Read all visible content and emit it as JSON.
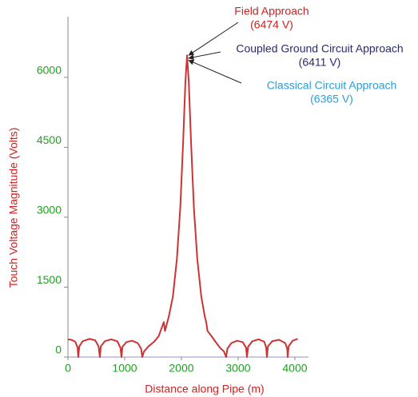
{
  "chart_data": {
    "type": "line",
    "xlabel": "Distance along Pipe (m)",
    "ylabel": "Touch Voltage Magnitude (Volts)",
    "xlim": [
      0,
      4240
    ],
    "ylim": [
      0,
      7300
    ],
    "xticks": [
      0,
      1000,
      2000,
      3000,
      4000
    ],
    "yticks": [
      0,
      1500,
      3000,
      4500,
      6000
    ],
    "x": [
      0,
      60,
      130,
      170,
      183,
      200,
      260,
      380,
      480,
      540,
      563,
      580,
      650,
      760,
      870,
      925,
      944,
      960,
      1030,
      1130,
      1230,
      1290,
      1310,
      1340,
      1420,
      1520,
      1600,
      1650,
      1690,
      1710,
      1780,
      1850,
      1920,
      1980,
      2030,
      2070,
      2100,
      2130,
      2170,
      2220,
      2280,
      2350,
      2410,
      2437,
      2460,
      2530,
      2600,
      2680,
      2750,
      2789,
      2810,
      2880,
      2980,
      3080,
      3140,
      3155,
      3175,
      3250,
      3360,
      3460,
      3495,
      3507,
      3525,
      3600,
      3720,
      3830,
      3865,
      3873,
      3890,
      3960,
      4050
    ],
    "series": [
      {
        "color": "#cc3333",
        "values": [
          380,
          370,
          330,
          200,
          0,
          230,
          340,
          390,
          360,
          230,
          0,
          230,
          340,
          380,
          340,
          200,
          0,
          220,
          320,
          350,
          300,
          180,
          0,
          120,
          230,
          330,
          450,
          620,
          750,
          560,
          880,
          1300,
          2100,
          3200,
          4600,
          5900,
          6474,
          5900,
          4600,
          3200,
          2100,
          1300,
          880,
          750,
          560,
          450,
          330,
          200,
          120,
          0,
          180,
          300,
          350,
          320,
          200,
          0,
          220,
          340,
          380,
          330,
          200,
          0,
          230,
          340,
          370,
          300,
          180,
          0,
          230,
          350,
          390
        ]
      }
    ],
    "annotations": [
      {
        "text": "Field Approach",
        "label": "(6474 V)",
        "value": 6474,
        "x": 2100,
        "color": "#cc2222"
      },
      {
        "text": "Coupled Ground Circuit Approach",
        "label": "(6411 V)",
        "value": 6411,
        "x": 2100,
        "color": "#2a2a6e"
      },
      {
        "text": "Classical Circuit Approach",
        "label": "(6365 V)",
        "value": 6365,
        "x": 2100,
        "color": "#2a9fd8"
      }
    ]
  }
}
